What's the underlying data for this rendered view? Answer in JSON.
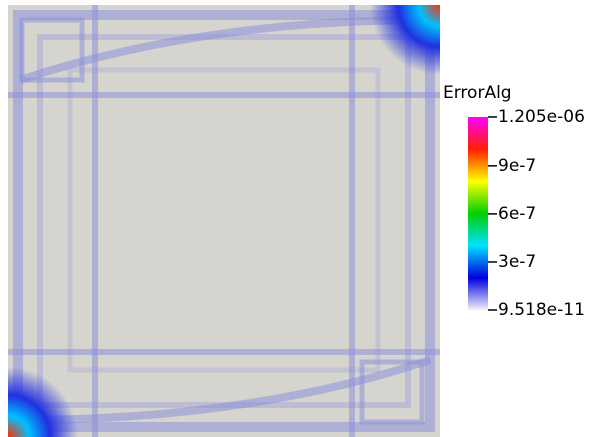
{
  "chart_data": {
    "type": "colorbar",
    "title": "ErrorAlg",
    "clim": [
      9.518e-11,
      1.205e-06
    ],
    "ticks": [
      {
        "value": 1.205e-06,
        "label": "1.205e-06"
      },
      9e-07,
      6e-07,
      3e-07,
      {
        "value": 9.518e-11,
        "label": "9.518e-11"
      }
    ],
    "colormap": [
      "#f2f2fa",
      "#0000e0",
      "#00e0ff",
      "#00d000",
      "#ffff00",
      "#ff2000",
      "#ff00ff"
    ]
  }
}
